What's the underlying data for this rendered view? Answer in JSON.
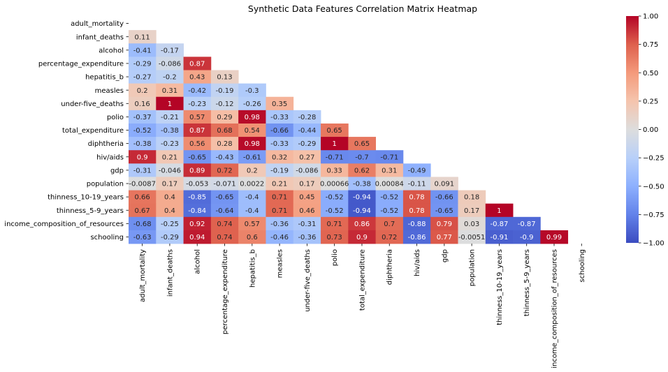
{
  "chart_data": {
    "type": "heatmap",
    "title": "Synthetic Data Features Correlation Matrix Heatmap",
    "labels": [
      "adult_mortality",
      "infant_deaths",
      "alcohol",
      "percentage_expenditure",
      "hepatitis_b",
      "measles",
      "under-five_deaths",
      "polio",
      "total_expenditure",
      "diphtheria",
      "hiv/aids",
      "gdp",
      "population",
      "thinness_10-19_years",
      "thinness_5-9_years",
      "income_composition_of_resources",
      "schooling"
    ],
    "mask": "upper-triangle-including-diagonal",
    "colormap": "coolwarm",
    "vmin": -1.0,
    "vmax": 1.0,
    "colorbar_ticks": [
      "1.00",
      "0.75",
      "0.50",
      "0.25",
      "0.00",
      "−0.25",
      "−0.50",
      "−0.75",
      "−1.00"
    ],
    "colorbar_tick_values": [
      1.0,
      0.75,
      0.5,
      0.25,
      0.0,
      -0.25,
      -0.5,
      -0.75,
      -1.0
    ],
    "rows": [
      {
        "label": "infant_deaths",
        "values": [
          0.11
        ],
        "text": [
          "0.11"
        ]
      },
      {
        "label": "alcohol",
        "values": [
          -0.41,
          -0.17
        ],
        "text": [
          "-0.41",
          "-0.17"
        ]
      },
      {
        "label": "percentage_expenditure",
        "values": [
          -0.29,
          -0.086,
          0.87
        ],
        "text": [
          "-0.29",
          "-0.086",
          "0.87"
        ]
      },
      {
        "label": "hepatitis_b",
        "values": [
          -0.27,
          -0.2,
          0.43,
          0.13
        ],
        "text": [
          "-0.27",
          "-0.2",
          "0.43",
          "0.13"
        ]
      },
      {
        "label": "measles",
        "values": [
          0.2,
          0.31,
          -0.42,
          -0.19,
          -0.3
        ],
        "text": [
          "0.2",
          "0.31",
          "-0.42",
          "-0.19",
          "-0.3"
        ]
      },
      {
        "label": "under-five_deaths",
        "values": [
          0.16,
          1.0,
          -0.23,
          -0.12,
          -0.26,
          0.35
        ],
        "text": [
          "0.16",
          "1",
          "-0.23",
          "-0.12",
          "-0.26",
          "0.35"
        ]
      },
      {
        "label": "polio",
        "values": [
          -0.37,
          -0.21,
          0.57,
          0.29,
          0.98,
          -0.33,
          -0.28
        ],
        "text": [
          "-0.37",
          "-0.21",
          "0.57",
          "0.29",
          "0.98",
          "-0.33",
          "-0.28"
        ]
      },
      {
        "label": "total_expenditure",
        "values": [
          -0.52,
          -0.38,
          0.87,
          0.68,
          0.54,
          -0.66,
          -0.44,
          0.65
        ],
        "text": [
          "-0.52",
          "-0.38",
          "0.87",
          "0.68",
          "0.54",
          "-0.66",
          "-0.44",
          "0.65"
        ]
      },
      {
        "label": "diphtheria",
        "values": [
          -0.38,
          -0.23,
          0.56,
          0.28,
          0.98,
          -0.33,
          -0.29,
          1.0,
          0.65
        ],
        "text": [
          "-0.38",
          "-0.23",
          "0.56",
          "0.28",
          "0.98",
          "-0.33",
          "-0.29",
          "1",
          "0.65"
        ]
      },
      {
        "label": "hiv/aids",
        "values": [
          0.9,
          0.21,
          -0.65,
          -0.43,
          -0.61,
          0.32,
          0.27,
          -0.71,
          -0.7,
          -0.71
        ],
        "text": [
          "0.9",
          "0.21",
          "-0.65",
          "-0.43",
          "-0.61",
          "0.32",
          "0.27",
          "-0.71",
          "-0.7",
          "-0.71"
        ]
      },
      {
        "label": "gdp",
        "values": [
          -0.31,
          -0.046,
          0.89,
          0.72,
          0.2,
          -0.19,
          -0.086,
          0.33,
          0.62,
          0.31,
          -0.49
        ],
        "text": [
          "-0.31",
          "-0.046",
          "0.89",
          "0.72",
          "0.2",
          "-0.19",
          "-0.086",
          "0.33",
          "0.62",
          "0.31",
          "-0.49"
        ]
      },
      {
        "label": "population",
        "values": [
          -0.0087,
          0.17,
          -0.053,
          -0.071,
          0.0022,
          0.21,
          0.17,
          0.00066,
          -0.38,
          0.00084,
          -0.11,
          0.091
        ],
        "text": [
          "-0.0087",
          "0.17",
          "-0.053",
          "-0.071",
          "0.0022",
          "0.21",
          "0.17",
          "0.00066",
          "-0.38",
          "0.00084",
          "-0.11",
          "0.091"
        ]
      },
      {
        "label": "thinness_10-19_years",
        "values": [
          0.66,
          0.4,
          -0.85,
          -0.65,
          -0.4,
          0.71,
          0.45,
          -0.52,
          -0.94,
          -0.52,
          0.78,
          -0.66,
          0.18
        ],
        "text": [
          "0.66",
          "0.4",
          "-0.85",
          "-0.65",
          "-0.4",
          "0.71",
          "0.45",
          "-0.52",
          "-0.94",
          "-0.52",
          "0.78",
          "-0.66",
          "0.18"
        ]
      },
      {
        "label": "thinness_5-9_years",
        "values": [
          0.67,
          0.4,
          -0.84,
          -0.64,
          -0.4,
          0.71,
          0.46,
          -0.52,
          -0.94,
          -0.52,
          0.78,
          -0.65,
          0.17,
          1.0
        ],
        "text": [
          "0.67",
          "0.4",
          "-0.84",
          "-0.64",
          "-0.4",
          "0.71",
          "0.46",
          "-0.52",
          "-0.94",
          "-0.52",
          "0.78",
          "-0.65",
          "0.17",
          "1"
        ]
      },
      {
        "label": "income_composition_of_resources",
        "values": [
          -0.68,
          -0.25,
          0.92,
          0.74,
          0.57,
          -0.36,
          -0.31,
          0.71,
          0.86,
          0.7,
          -0.88,
          0.79,
          0.03,
          -0.87,
          -0.87
        ],
        "text": [
          "-0.68",
          "-0.25",
          "0.92",
          "0.74",
          "0.57",
          "-0.36",
          "-0.31",
          "0.71",
          "0.86",
          "0.7",
          "-0.88",
          "0.79",
          "0.03",
          "-0.87",
          "-0.87"
        ]
      },
      {
        "label": "schooling",
        "values": [
          -0.63,
          -0.29,
          0.94,
          0.74,
          0.6,
          -0.46,
          -0.36,
          0.73,
          0.9,
          0.72,
          -0.86,
          0.77,
          -0.0051,
          -0.91,
          -0.9,
          0.99
        ],
        "text": [
          "-0.63",
          "-0.29",
          "0.94",
          "0.74",
          "0.6",
          "-0.46",
          "-0.36",
          "0.73",
          "0.9",
          "0.72",
          "-0.86",
          "0.77",
          "-0.0051",
          "-0.91",
          "-0.9",
          "0.99"
        ]
      }
    ]
  }
}
